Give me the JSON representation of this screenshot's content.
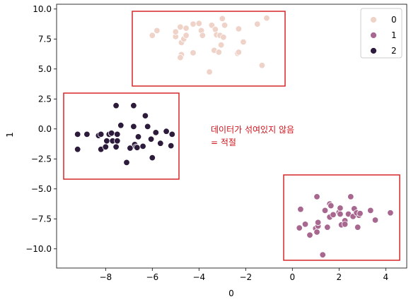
{
  "chart_data": {
    "type": "scatter",
    "xlabel": "0",
    "ylabel": "1",
    "xlim": [
      -10.1,
      4.9
    ],
    "ylim": [
      -11.6,
      10.4
    ],
    "xticks": [
      -8,
      -6,
      -4,
      -2,
      0,
      2,
      4
    ],
    "xtick_labels": [
      "−8",
      "−6",
      "−4",
      "−2",
      "0",
      "2",
      "4"
    ],
    "yticks": [
      -10.0,
      -7.5,
      -5.0,
      -2.5,
      0.0,
      2.5,
      5.0,
      7.5,
      10.0
    ],
    "ytick_labels": [
      "−10.0",
      "−7.5",
      "−5.0",
      "−2.5",
      "0.0",
      "2.5",
      "5.0",
      "7.5",
      "10.0"
    ],
    "legend": {
      "position": "top-right",
      "entries": [
        "0",
        "1",
        "2"
      ]
    },
    "colors": {
      "0": "#efd2c8",
      "1": "#a8678f",
      "2": "#2d1b3c",
      "box": "#d62728"
    },
    "series": [
      {
        "name": "0",
        "points": [
          [
            -6.0,
            7.8
          ],
          [
            -5.8,
            8.2
          ],
          [
            -5.0,
            7.7
          ],
          [
            -5.0,
            8.1
          ],
          [
            -4.8,
            8.5
          ],
          [
            -4.75,
            7.2
          ],
          [
            -4.65,
            7.5
          ],
          [
            -4.55,
            8.4
          ],
          [
            -4.55,
            7.8
          ],
          [
            -4.25,
            8.75
          ],
          [
            -4.25,
            6.35
          ],
          [
            -4.0,
            8.8
          ],
          [
            -3.9,
            8.2
          ],
          [
            -3.85,
            7.8
          ],
          [
            -4.75,
            6.2
          ],
          [
            -4.8,
            5.95
          ],
          [
            -3.55,
            4.75
          ],
          [
            -3.45,
            8.65
          ],
          [
            -3.3,
            8.3
          ],
          [
            -3.35,
            6.55
          ],
          [
            -3.25,
            7.85
          ],
          [
            -3.1,
            7.8
          ],
          [
            -3.0,
            9.2
          ],
          [
            -2.9,
            8.65
          ],
          [
            -2.95,
            7.65
          ],
          [
            -3.05,
            7.0
          ],
          [
            -3.15,
            6.4
          ],
          [
            -2.3,
            8.35
          ],
          [
            -2.35,
            6.3
          ],
          [
            -2.3,
            6.4
          ],
          [
            -2.1,
            7.25
          ],
          [
            -1.5,
            8.75
          ],
          [
            -1.1,
            9.25
          ],
          [
            -1.3,
            5.3
          ]
        ]
      },
      {
        "name": "1",
        "points": [
          [
            0.3,
            -8.25
          ],
          [
            0.35,
            -6.7
          ],
          [
            0.55,
            -7.95
          ],
          [
            0.75,
            -8.85
          ],
          [
            1.0,
            -8.3
          ],
          [
            1.05,
            -5.65
          ],
          [
            1.05,
            -8.6
          ],
          [
            1.1,
            -8.1
          ],
          [
            1.1,
            -7.8
          ],
          [
            1.3,
            -10.5
          ],
          [
            1.4,
            -6.8
          ],
          [
            1.5,
            -8.2
          ],
          [
            1.6,
            -7.35
          ],
          [
            1.6,
            -6.25
          ],
          [
            1.65,
            -6.4
          ],
          [
            1.75,
            -7.15
          ],
          [
            2.0,
            -6.95
          ],
          [
            2.05,
            -6.6
          ],
          [
            2.05,
            -7.1
          ],
          [
            2.1,
            -8.0
          ],
          [
            2.25,
            -7.65
          ],
          [
            2.25,
            -7.95
          ],
          [
            2.4,
            -7.1
          ],
          [
            2.5,
            -5.65
          ],
          [
            2.6,
            -7.3
          ],
          [
            2.65,
            -6.65
          ],
          [
            2.8,
            -8.2
          ],
          [
            2.85,
            -7.2
          ],
          [
            2.75,
            -7.0
          ],
          [
            2.9,
            -7.05
          ],
          [
            3.35,
            -6.8
          ],
          [
            3.55,
            -7.6
          ],
          [
            4.2,
            -7.0
          ]
        ]
      },
      {
        "name": "2",
        "points": [
          [
            -9.2,
            -0.45
          ],
          [
            -9.2,
            -1.7
          ],
          [
            -8.8,
            -0.45
          ],
          [
            -8.3,
            -0.55
          ],
          [
            -8.2,
            -0.45
          ],
          [
            -8.2,
            -1.7
          ],
          [
            -8.0,
            -1.5
          ],
          [
            -7.95,
            -1.0
          ],
          [
            -7.85,
            -0.45
          ],
          [
            -7.75,
            -0.35
          ],
          [
            -7.7,
            -1.0
          ],
          [
            -7.55,
            -1.5
          ],
          [
            -7.55,
            1.95
          ],
          [
            -7.5,
            -0.45
          ],
          [
            -7.5,
            -1.0
          ],
          [
            -7.35,
            0.3
          ],
          [
            -7.1,
            -2.8
          ],
          [
            -6.95,
            -1.6
          ],
          [
            -6.8,
            1.95
          ],
          [
            -6.8,
            0.2
          ],
          [
            -6.75,
            -1.3
          ],
          [
            -6.7,
            -1.5
          ],
          [
            -6.65,
            -1.55
          ],
          [
            -6.6,
            -0.65
          ],
          [
            -6.4,
            -1.45
          ],
          [
            -6.3,
            1.1
          ],
          [
            -6.2,
            0.2
          ],
          [
            -6.05,
            -0.85
          ],
          [
            -6.0,
            -2.4
          ],
          [
            -5.85,
            -0.3
          ],
          [
            -5.65,
            -1.2
          ],
          [
            -5.4,
            -0.2
          ],
          [
            -5.2,
            -1.4
          ],
          [
            -5.15,
            -0.45
          ]
        ]
      }
    ],
    "annotations": [
      {
        "text": "데이터가 섞여있지 않음"
      },
      {
        "text": "= 적절"
      }
    ]
  }
}
